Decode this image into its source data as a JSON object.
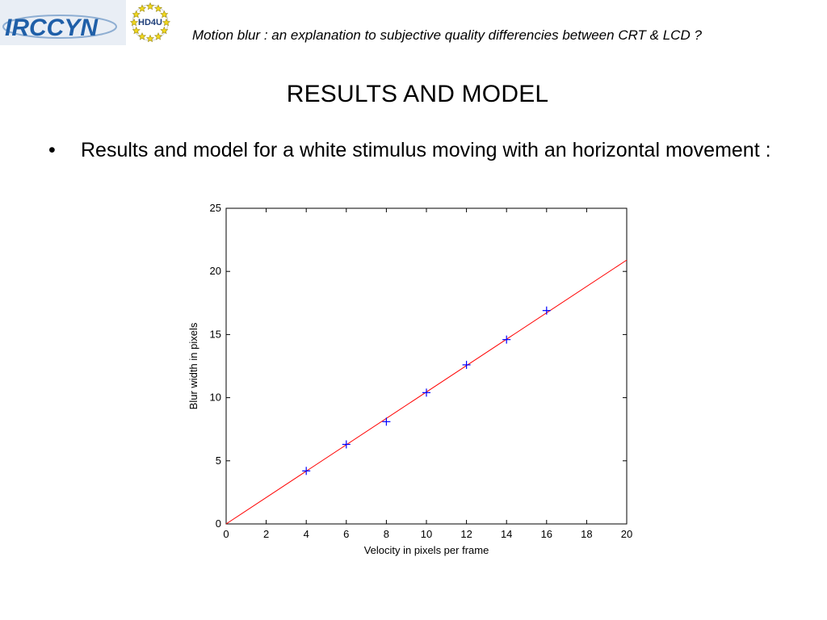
{
  "header": {
    "logo_text": "IRCCYN",
    "logo_badge": "HD4U",
    "subtitle": "Motion blur : an explanation to subjective quality differencies between CRT & LCD ?"
  },
  "slide": {
    "title": "RESULTS AND MODEL",
    "bullet": "Results and model for a white stimulus moving with an horizontal movement :"
  },
  "colors": {
    "model_line": "#ff0000",
    "markers": "#0000ff",
    "axes": "#000000",
    "logo_blue": "#1f5fa8",
    "star_yellow": "#f2d81c"
  },
  "chart_data": {
    "type": "scatter",
    "title": "",
    "xlabel": "Velocity in pixels per frame",
    "ylabel": "Blur width in pixels",
    "xlim": [
      0,
      20
    ],
    "ylim": [
      0,
      25
    ],
    "xticks": [
      0,
      2,
      4,
      6,
      8,
      10,
      12,
      14,
      16,
      18,
      20
    ],
    "yticks": [
      0,
      5,
      10,
      15,
      20,
      25
    ],
    "grid": false,
    "series": [
      {
        "kind": "markers",
        "marker": "+",
        "x": [
          4,
          6,
          8,
          10,
          12,
          14,
          16
        ],
        "y": [
          4.2,
          6.3,
          8.1,
          10.4,
          12.6,
          14.6,
          16.9
        ]
      },
      {
        "kind": "line",
        "x": [
          0,
          20
        ],
        "y": [
          0,
          20.9
        ]
      }
    ]
  }
}
